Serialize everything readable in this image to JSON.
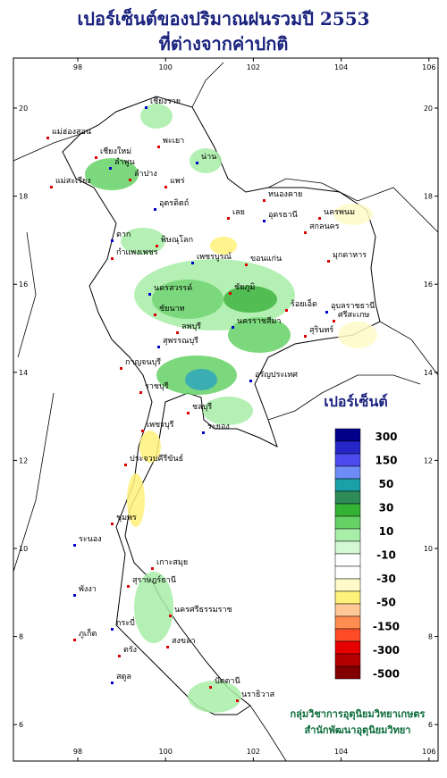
{
  "header": {
    "title": "เปอร์เซ็นต์ของปริมาณฝนรวมปี 2553",
    "subtitle": "ที่ต่างจากค่าปกติ"
  },
  "axes": {
    "lon_ticks": [
      98,
      100,
      102,
      104,
      106
    ],
    "lat_ticks": [
      6,
      8,
      10,
      12,
      14,
      16,
      18,
      20
    ]
  },
  "legend": {
    "title": "เปอร์เซ็นต์",
    "colors": [
      "#00008b",
      "#2626c8",
      "#4b4bf0",
      "#6e8cf5",
      "#1aa0a8",
      "#2e8b57",
      "#34b234",
      "#66d266",
      "#a8eea8",
      "#d4f8d4",
      "#ffffff",
      "#ffffff",
      "#fffac8",
      "#fff27a",
      "#ffc896",
      "#ff8c50",
      "#ff4b26",
      "#e60000",
      "#b40000",
      "#820000"
    ],
    "labels": [
      300,
      150,
      50,
      30,
      10,
      -10,
      -30,
      -50,
      -150,
      -300,
      -500
    ]
  },
  "places": [
    "เชียงราย",
    "แม่ฮ่องสอน",
    "เชียงใหม่",
    "ลำพูน",
    "ลำปาง",
    "พะเยา",
    "น่าน",
    "แพร่",
    "แม่สะเรียง",
    "อุตรดิตถ์",
    "เลย",
    "หนองคาย",
    "อุดรธานี",
    "นครพนม",
    "สกลนคร",
    "ตาก",
    "พิษณุโลก",
    "กำแพงเพชร",
    "เพชรบูรณ์",
    "ขอนแก่น",
    "มุกดาหาร",
    "นครสวรรค์",
    "ชัยภูมิ",
    "ร้อยเอ็ด",
    "อุบลราชธานี",
    "ชัยนาท",
    "ลพบุรี",
    "นครราชสีมา",
    "สุรินทร์",
    "ศรีสะเกษ",
    "สุพรรณบุรี",
    "กาญจนบุรี",
    "ราชบุรี",
    "อรัญประเทศ",
    "ชลบุรี",
    "เพชรบุรี",
    "ระยอง",
    "ประจวบคีรีขันธ์",
    "ชุมพร",
    "ระนอง",
    "เกาะสมุย",
    "สุราษฎร์ธานี",
    "พังงา",
    "นครศรีธรรมราช",
    "ภูเก็ต",
    "กระบี่",
    "ตรัง",
    "สงขลา",
    "สตูล",
    "ปัตตานี",
    "นราธิวาส"
  ],
  "credits": [
    "กลุ่มวิชาการอุตุนิยมวิทยาเกษตร",
    "สำนักพัฒนาอุตุนิยมวิทยา"
  ]
}
